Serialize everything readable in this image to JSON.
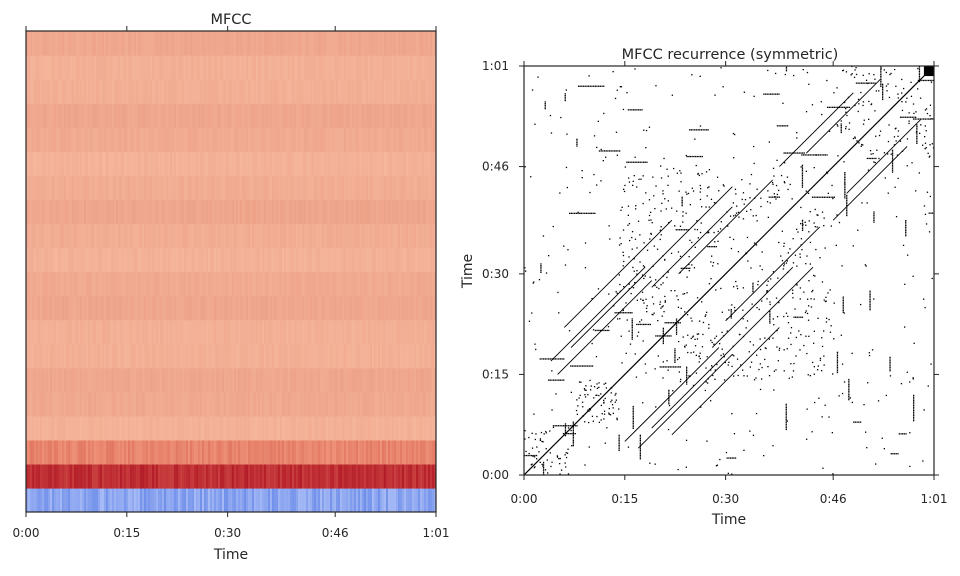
{
  "chart_data": [
    {
      "type": "heatmap",
      "title": "MFCC",
      "xlabel": "Time",
      "ylabel": "",
      "x_ticks": [
        "0:00",
        "0:15",
        "0:30",
        "0:46",
        "1:01"
      ],
      "x_tick_values_seconds": [
        0,
        15,
        30,
        46,
        61
      ],
      "xlim_seconds": [
        0,
        61
      ],
      "n_coefficients": 20,
      "colormap": "coolwarm",
      "colors": {
        "low": "#3b4cc0",
        "mid": "#dddddd",
        "high": "#b40426"
      },
      "note_rows_bottom_to_top": [
        {
          "row": 0,
          "level": "very low (blue)"
        },
        {
          "row": 1,
          "level": "very high (dark red)"
        },
        {
          "row": 2,
          "level": "high (red-orange)"
        },
        {
          "row": "3-19",
          "level": "moderately high (salmon)"
        }
      ]
    },
    {
      "type": "heatmap",
      "title": "MFCC recurrence (symmetric)",
      "xlabel": "Time",
      "ylabel": "Time",
      "x_ticks": [
        "0:00",
        "0:15",
        "0:30",
        "0:46",
        "1:01"
      ],
      "y_ticks": [
        "0:00",
        "0:15",
        "0:30",
        "0:46",
        "1:01"
      ],
      "tick_values_seconds": [
        0,
        15,
        30,
        46,
        61
      ],
      "xlim_seconds": [
        0,
        61
      ],
      "ylim_seconds": [
        0,
        61
      ],
      "symmetric": true,
      "colors": {
        "background": "#ffffff",
        "marks": "#000000"
      },
      "dense_blocks_seconds": [
        {
          "start": 0,
          "end": 7
        },
        {
          "start": 7.5,
          "end": 14
        },
        {
          "start": 14,
          "end": 46
        },
        {
          "start": 46,
          "end": 61
        }
      ]
    }
  ]
}
